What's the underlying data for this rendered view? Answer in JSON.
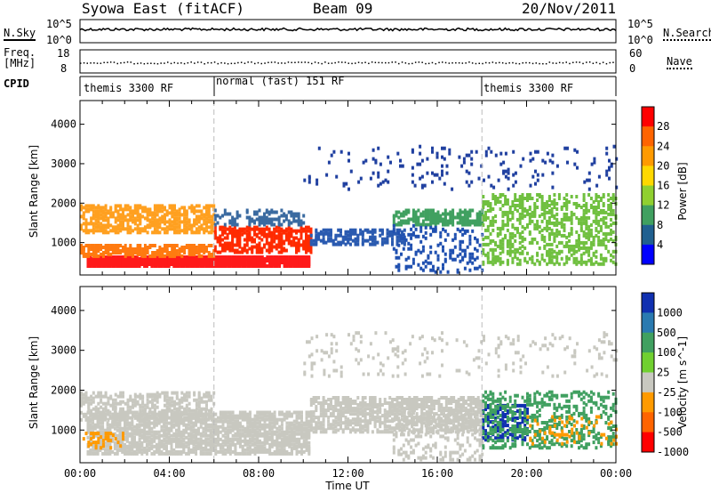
{
  "header": {
    "station": "Syowa East (fitACF)",
    "beam": "Beam 09",
    "date": "20/Nov/2011"
  },
  "top_panels": {
    "nsky_label": "N.Sky",
    "nsky_ticks": [
      "10^5",
      "10^0"
    ],
    "nsearch_label": "N.Search",
    "nsearch_ticks": [
      "10^5",
      "10^0"
    ],
    "freq_label_line1": "Freq.",
    "freq_label_line2": "[MHz]",
    "freq_ticks": [
      "18",
      "8"
    ],
    "nave_label": "Nave",
    "nave_ticks": [
      "60",
      "0"
    ],
    "cpid_label": "CPID",
    "cpid_segments": [
      {
        "label": "themis 3300 RF",
        "start_h": 0,
        "end_h": 6
      },
      {
        "label": "normal (fast) 151 RF",
        "start_h": 6,
        "end_h": 18
      },
      {
        "label": "themis 3300 RF",
        "start_h": 18,
        "end_h": 24
      }
    ]
  },
  "chart_data": [
    {
      "type": "heatmap",
      "title": "",
      "xlabel": "Time UT",
      "ylabel": "Slant Range [km]",
      "xlim": [
        0,
        24
      ],
      "ylim": [
        180,
        4600
      ],
      "yticks": [
        "1000",
        "2000",
        "3000",
        "4000"
      ],
      "colorbar": {
        "label": "Power [dB]",
        "ticks": [
          "28",
          "24",
          "20",
          "16",
          "12",
          "8",
          "4"
        ],
        "colors": [
          "#ff0000",
          "#ff6400",
          "#ff9a00",
          "#ffd800",
          "#90d030",
          "#40a060",
          "#206090",
          "#0000ff"
        ]
      },
      "bands": [
        {
          "t0": 0.3,
          "t1": 10.3,
          "r0": 450,
          "r1": 700,
          "color": "#ff1a1a",
          "density": 0.95
        },
        {
          "t0": 0.0,
          "t1": 6.0,
          "r0": 700,
          "r1": 1000,
          "color": "#ff7a10",
          "density": 0.6
        },
        {
          "t0": 0.0,
          "t1": 6.0,
          "r0": 1300,
          "r1": 2000,
          "color": "#ffa020",
          "density": 0.55
        },
        {
          "t0": 6.0,
          "t1": 10.3,
          "r0": 800,
          "r1": 1450,
          "color": "#ff2a00",
          "density": 0.55
        },
        {
          "t0": 6.0,
          "t1": 10.0,
          "r0": 1500,
          "r1": 1900,
          "color": "#3a6aa0",
          "density": 0.3
        },
        {
          "t0": 10.3,
          "t1": 14.5,
          "r0": 1000,
          "r1": 1400,
          "color": "#2a5ab0",
          "density": 0.5
        },
        {
          "t0": 14.0,
          "t1": 18.0,
          "r0": 1500,
          "r1": 1900,
          "color": "#40a060",
          "density": 0.5
        },
        {
          "t0": 14.0,
          "t1": 18.0,
          "r0": 300,
          "r1": 1500,
          "color": "#2050b0",
          "density": 0.15
        },
        {
          "t0": 18.0,
          "t1": 24.0,
          "r0": 500,
          "r1": 2300,
          "color": "#70c040",
          "density": 0.3
        },
        {
          "t0": 10.0,
          "t1": 24.0,
          "r0": 2400,
          "r1": 3500,
          "color": "#2040a0",
          "density": 0.05
        }
      ]
    },
    {
      "type": "heatmap",
      "title": "",
      "xlabel": "Time UT",
      "ylabel": "Slant Range [km]",
      "xlim": [
        0,
        24
      ],
      "ylim": [
        180,
        4600
      ],
      "xticks": [
        "00:00",
        "04:00",
        "08:00",
        "12:00",
        "16:00",
        "20:00",
        "00:00"
      ],
      "yticks": [
        "1000",
        "2000",
        "3000",
        "4000"
      ],
      "colorbar": {
        "label": "Velocity [m s^-1]",
        "ticks": [
          "1000",
          "500",
          "100",
          "25",
          "-25",
          "-100",
          "-500",
          "-1000"
        ],
        "colors": [
          "#1030b0",
          "#2a7ab0",
          "#40a060",
          "#70d030",
          "#c8c8c0",
          "#ff9a00",
          "#ff6400",
          "#ff0000"
        ]
      },
      "bands": [
        {
          "t0": 0.3,
          "t1": 10.3,
          "r0": 450,
          "r1": 1500,
          "color": "#c8c8c0",
          "density": 0.65
        },
        {
          "t0": 0.0,
          "t1": 6.0,
          "r0": 1300,
          "r1": 2000,
          "color": "#c8c8c0",
          "density": 0.45
        },
        {
          "t0": 10.3,
          "t1": 18.0,
          "r0": 1000,
          "r1": 1900,
          "color": "#c8c8c0",
          "density": 0.55
        },
        {
          "t0": 0.0,
          "t1": 2.0,
          "r0": 600,
          "r1": 1000,
          "color": "#ff9a00",
          "density": 0.25
        },
        {
          "t0": 14.0,
          "t1": 18.0,
          "r0": 300,
          "r1": 1500,
          "color": "#c8c8c0",
          "density": 0.2
        },
        {
          "t0": 18.0,
          "t1": 20.0,
          "r0": 800,
          "r1": 1700,
          "color": "#1030b0",
          "density": 0.35
        },
        {
          "t0": 18.0,
          "t1": 24.0,
          "r0": 600,
          "r1": 2000,
          "color": "#40a060",
          "density": 0.25
        },
        {
          "t0": 20.0,
          "t1": 24.0,
          "r0": 700,
          "r1": 1400,
          "color": "#ff9a00",
          "density": 0.12
        },
        {
          "t0": 10.0,
          "t1": 24.0,
          "r0": 2400,
          "r1": 3500,
          "color": "#c8c8c0",
          "density": 0.05
        }
      ]
    }
  ]
}
